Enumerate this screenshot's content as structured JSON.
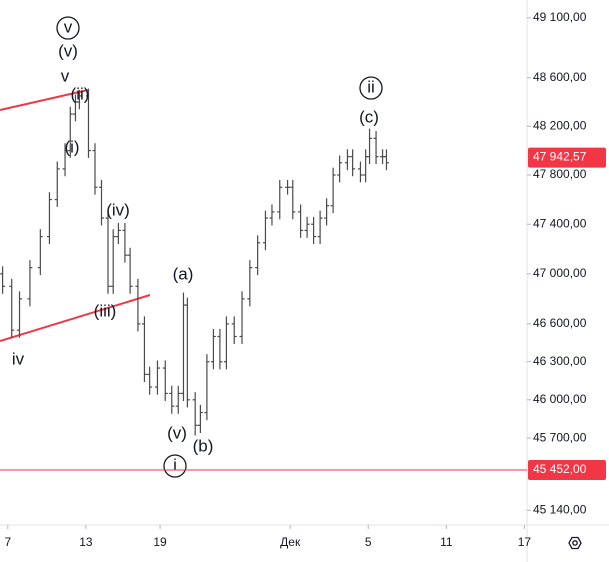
{
  "chart_data": {
    "type": "ohlc",
    "log_scale": true,
    "color": "#4a4a4a",
    "x": [
      -0.4,
      0.3,
      0.9,
      1.7,
      2.5,
      3.2,
      3.8,
      4.4,
      4.8,
      5.2,
      5.5,
      6.2,
      6.7,
      7.2,
      7.7,
      8.1,
      8.5,
      9.0,
      9.4,
      10.0,
      10.5,
      10.9,
      11.5,
      12.1,
      12.6,
      13.1,
      13.5,
      13.8,
      14.4,
      14.8,
      15.3,
      15.8,
      16.3,
      16.8,
      17.4,
      18.0,
      18.6,
      19.2,
      19.8,
      20.3,
      20.9,
      21.5,
      21.9,
      22.5,
      23.0,
      23.5,
      24.0,
      24.5,
      25.0,
      25.5,
      26.1,
      26.5,
      27.1,
      27.5,
      27.8,
      28.3,
      28.8,
      29.1
    ],
    "open": [
      47000,
      46900,
      46550,
      46800,
      47050,
      47300,
      47600,
      47850,
      48000,
      48300,
      48400,
      48450,
      48000,
      47700,
      47450,
      46900,
      47300,
      47350,
      47150,
      46900,
      46600,
      46200,
      46100,
      46250,
      46050,
      45950,
      46050,
      46750,
      46000,
      45800,
      45900,
      46300,
      46500,
      46300,
      46600,
      46500,
      46800,
      47050,
      47250,
      47450,
      47500,
      47700,
      47700,
      47500,
      47350,
      47400,
      47300,
      47450,
      47550,
      47800,
      47900,
      47950,
      47850,
      47800,
      47950,
      48100,
      47950,
      47950
    ],
    "high": [
      47060,
      46960,
      46860,
      47110,
      47360,
      47660,
      47910,
      48060,
      48360,
      48460,
      48500,
      48510,
      48060,
      47760,
      47510,
      47360,
      47410,
      47410,
      47210,
      46960,
      46660,
      46260,
      46310,
      46310,
      46110,
      46110,
      46850,
      46810,
      46060,
      45960,
      46360,
      46560,
      46560,
      46660,
      46660,
      46860,
      47110,
      47310,
      47510,
      47560,
      47760,
      47760,
      47760,
      47560,
      47460,
      47460,
      47510,
      47610,
      47860,
      47960,
      48010,
      48010,
      47910,
      48010,
      48180,
      48160,
      48010,
      48010
    ],
    "low": [
      46840,
      46490,
      46490,
      46740,
      46990,
      47240,
      47540,
      47790,
      47940,
      48240,
      48340,
      47940,
      47640,
      47390,
      46840,
      46840,
      47240,
      47090,
      46840,
      46540,
      46140,
      46040,
      46040,
      45990,
      45890,
      45890,
      45990,
      45940,
      45720,
      45740,
      45840,
      46240,
      46240,
      46240,
      46440,
      46440,
      46740,
      46990,
      47190,
      47390,
      47440,
      47640,
      47440,
      47290,
      47290,
      47240,
      47240,
      47390,
      47490,
      47740,
      47840,
      47790,
      47740,
      47740,
      47890,
      47890,
      47890,
      47840
    ],
    "close": [
      46900,
      46550,
      46800,
      47050,
      47300,
      47600,
      47850,
      48000,
      48300,
      48400,
      48450,
      48000,
      47700,
      47450,
      46900,
      47300,
      47350,
      47150,
      46900,
      46600,
      46200,
      46100,
      46250,
      46050,
      45950,
      46050,
      46750,
      46000,
      45800,
      45900,
      46300,
      46500,
      46300,
      46600,
      46500,
      46800,
      47050,
      47250,
      47450,
      47500,
      47700,
      47700,
      47500,
      47350,
      47400,
      47300,
      47450,
      47550,
      47800,
      47900,
      47950,
      47850,
      47800,
      47950,
      48100,
      47950,
      47950,
      47900
    ],
    "xlim": [
      -0.6,
      39.9
    ],
    "xticks": [
      {
        "value": 0,
        "label": "7"
      },
      {
        "value": 6,
        "label": "13"
      },
      {
        "value": 11.7,
        "label": "19"
      },
      {
        "value": 21.7,
        "label": "Дек"
      },
      {
        "value": 27.7,
        "label": "5"
      },
      {
        "value": 33.7,
        "label": "11"
      },
      {
        "value": 39.7,
        "label": "17"
      }
    ],
    "ylim": [
      45050,
      49250
    ],
    "yticks": [
      {
        "value": 49100,
        "label": "49 100,00"
      },
      {
        "value": 48600,
        "label": "48 600,00"
      },
      {
        "value": 48200,
        "label": "48 200,00"
      },
      {
        "value": 47800,
        "label": "47 800,00"
      },
      {
        "value": 47400,
        "label": "47 400,00"
      },
      {
        "value": 47000,
        "label": "47 000,00"
      },
      {
        "value": 46600,
        "label": "46 600,00"
      },
      {
        "value": 46300,
        "label": "46 300,00"
      },
      {
        "value": 46000,
        "label": "46 000,00"
      },
      {
        "value": 45700,
        "label": "45 700,00"
      },
      {
        "value": 45140,
        "label": "45 140,00"
      }
    ],
    "price_markers": [
      {
        "value": 47942.57,
        "label": "47 942,57",
        "color": "#f23645",
        "line": false
      },
      {
        "value": 45452,
        "label": "45 452,00",
        "color": "#f23645",
        "line": true
      }
    ],
    "annotations": [
      "v",
      "(v)",
      "v",
      "(ii)",
      "(i)",
      "(iv)",
      "(iii)",
      "iv",
      "(a)",
      "(v)",
      "(b)",
      "i",
      "ii",
      "(c)"
    ]
  }
}
